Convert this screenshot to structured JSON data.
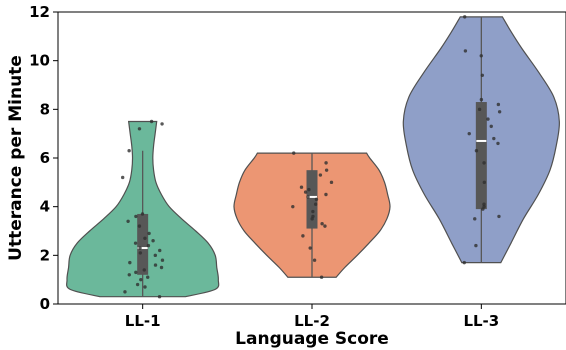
{
  "chart_data": {
    "type": "violin",
    "xlabel": "Language Score",
    "ylabel": "Utterance per Minute",
    "ylim": [
      0,
      12
    ],
    "yticks": [
      0,
      2,
      4,
      6,
      8,
      10,
      12
    ],
    "categories": [
      "LL-1",
      "LL-2",
      "LL-3"
    ],
    "colors": {
      "LL-1": "#6bb89b",
      "LL-2": "#ec9673",
      "LL-3": "#8f9fc8",
      "box": "#575757",
      "median": "#ffffff",
      "points": "#303030",
      "outline": "#505050"
    },
    "groups": [
      {
        "category": "LL-1",
        "min": 0.3,
        "q1": 1.2,
        "median": 2.3,
        "q3": 3.7,
        "max": 7.5,
        "whisker_low": 0.3,
        "whisker_high": 6.3,
        "density": [
          [
            0.3,
            0.55
          ],
          [
            0.6,
            0.93
          ],
          [
            1.0,
            0.97
          ],
          [
            1.5,
            0.95
          ],
          [
            2.0,
            0.93
          ],
          [
            2.5,
            0.84
          ],
          [
            3.0,
            0.68
          ],
          [
            3.5,
            0.5
          ],
          [
            4.0,
            0.34
          ],
          [
            4.5,
            0.24
          ],
          [
            5.0,
            0.17
          ],
          [
            5.5,
            0.14
          ],
          [
            6.0,
            0.13
          ],
          [
            6.5,
            0.14
          ],
          [
            7.0,
            0.16
          ],
          [
            7.5,
            0.18
          ]
        ],
        "points": [
          0.3,
          0.5,
          0.7,
          0.8,
          1.0,
          1.1,
          1.2,
          1.3,
          1.4,
          1.5,
          1.6,
          1.7,
          1.8,
          2.0,
          2.1,
          2.2,
          2.3,
          2.4,
          2.5,
          2.6,
          2.7,
          2.9,
          3.2,
          3.4,
          3.6,
          3.7,
          5.2,
          6.3,
          7.2,
          7.4,
          7.5
        ]
      },
      {
        "category": "LL-2",
        "min": 1.1,
        "q1": 3.1,
        "median": 4.4,
        "q3": 5.5,
        "max": 6.2,
        "whisker_low": 1.1,
        "whisker_high": 6.2,
        "density": [
          [
            1.1,
            0.31
          ],
          [
            1.5,
            0.42
          ],
          [
            2.0,
            0.58
          ],
          [
            2.5,
            0.73
          ],
          [
            3.0,
            0.87
          ],
          [
            3.5,
            0.96
          ],
          [
            4.0,
            1.0
          ],
          [
            4.5,
            0.97
          ],
          [
            5.0,
            0.93
          ],
          [
            5.5,
            0.86
          ],
          [
            6.0,
            0.74
          ],
          [
            6.2,
            0.7
          ]
        ],
        "points": [
          1.1,
          1.8,
          2.3,
          2.8,
          3.2,
          3.3,
          3.5,
          3.6,
          3.8,
          4.0,
          4.1,
          4.3,
          4.4,
          4.5,
          4.6,
          4.7,
          4.8,
          5.0,
          5.3,
          5.5,
          5.8,
          6.2
        ]
      },
      {
        "category": "LL-3",
        "min": 1.7,
        "q1": 3.9,
        "median": 6.7,
        "q3": 8.3,
        "max": 11.8,
        "whisker_low": 1.7,
        "whisker_high": 11.8,
        "density": [
          [
            1.7,
            0.25
          ],
          [
            2.5,
            0.38
          ],
          [
            3.5,
            0.54
          ],
          [
            4.5,
            0.73
          ],
          [
            5.5,
            0.88
          ],
          [
            6.5,
            0.96
          ],
          [
            7.5,
            1.0
          ],
          [
            8.5,
            0.93
          ],
          [
            9.5,
            0.74
          ],
          [
            10.5,
            0.52
          ],
          [
            11.2,
            0.38
          ],
          [
            11.8,
            0.27
          ]
        ],
        "points": [
          1.7,
          2.4,
          3.5,
          3.6,
          3.9,
          4.0,
          4.1,
          5.0,
          5.8,
          6.3,
          6.6,
          6.8,
          7.0,
          7.3,
          7.6,
          7.9,
          8.0,
          8.2,
          8.4,
          9.4,
          10.2,
          10.4,
          11.8
        ]
      }
    ]
  }
}
